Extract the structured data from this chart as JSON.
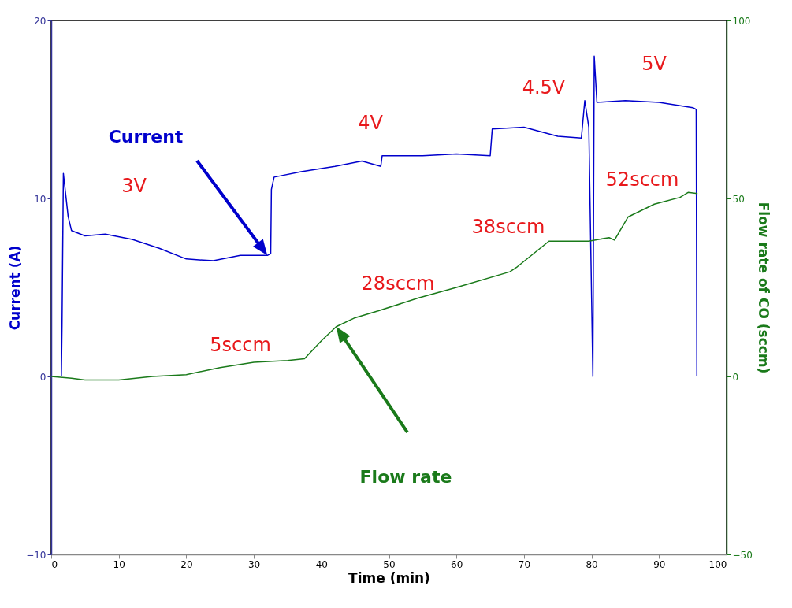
{
  "chart_data": {
    "type": "line",
    "xlabel": "Time (min)",
    "ylabel": "Current (A)",
    "y2label": "Flow rate of CO (sccm)",
    "xlim": [
      0,
      100
    ],
    "xticks": [
      0,
      10,
      20,
      30,
      40,
      50,
      60,
      70,
      80,
      90,
      100
    ],
    "ylim": [
      -10,
      20
    ],
    "yticks": [
      -10,
      0,
      10,
      20
    ],
    "y2lim": [
      -50,
      100
    ],
    "y2ticks": [
      -50,
      0,
      50,
      100
    ],
    "grid": false,
    "marker": "none",
    "line_style": "solid",
    "series": [
      {
        "name": "Current",
        "color": "#0000cc",
        "x": [
          1.5,
          1.6,
          1.8,
          2.5,
          3,
          5,
          8,
          12,
          16,
          20,
          24,
          28,
          32,
          32.5,
          32.6,
          33,
          37,
          42,
          46,
          48.8,
          49,
          55,
          60,
          65,
          65.3,
          70,
          75,
          78.5,
          79,
          79.6,
          80.2,
          80.4,
          80.8,
          85,
          90,
          95,
          95.5,
          95.6
        ],
        "values": [
          0,
          2.9,
          11.4,
          9,
          8.2,
          7.9,
          8.0,
          7.7,
          7.2,
          6.6,
          6.5,
          6.8,
          6.8,
          6.9,
          10.5,
          11.2,
          11.5,
          11.8,
          12.1,
          11.8,
          12.4,
          12.4,
          12.5,
          12.4,
          13.9,
          14.0,
          13.5,
          13.4,
          15.5,
          14,
          0,
          18,
          15.4,
          15.5,
          15.4,
          15.1,
          15,
          0
        ]
      },
      {
        "name": "Flow rate",
        "color": "#1a7a1a",
        "axis": "y2",
        "x": [
          0,
          3,
          5,
          10,
          15,
          20,
          25,
          30,
          35,
          37.5,
          40,
          42.2,
          45,
          48.4,
          54.3,
          60,
          67.9,
          69,
          73.7,
          79.6,
          82.6,
          83.4,
          85.4,
          89.3,
          93.1,
          94.3,
          95.7
        ],
        "values": [
          0,
          -0.5,
          -1,
          -1,
          0,
          0.5,
          2.5,
          4,
          4.5,
          5,
          10,
          14,
          16.5,
          18.4,
          22,
          25,
          29.4,
          30.8,
          38,
          38,
          39,
          38.3,
          44.8,
          48.4,
          50.3,
          51.7,
          51.4
        ]
      }
    ],
    "annotations": [
      "3V",
      "4V",
      "4.5V",
      "5V",
      "5sccm",
      "28sccm",
      "38sccm",
      "52sccm"
    ]
  }
}
